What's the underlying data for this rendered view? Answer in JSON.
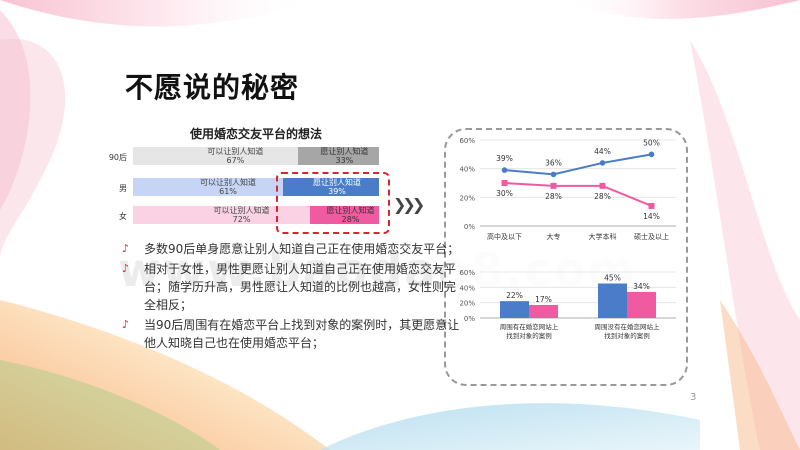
{
  "slide": {
    "title": "不愿说的秘密",
    "page_number": "3",
    "watermark": "www.baodao8.com"
  },
  "colors": {
    "blue": "#4a7cc9",
    "pink": "#f05aa0",
    "gray_light": "#e6e6e6",
    "gray_dark": "#a6a6a6",
    "blue_light": "#c6d4f5",
    "pink_light": "#fad2e3",
    "red_highlight": "#d9252e"
  },
  "left_chart": {
    "title": "使用婚恋交友平台的想法",
    "rows": [
      {
        "label": "90后",
        "left_text": "可以让别人知道",
        "left_value": "67%",
        "right_text": "愿让别人知道",
        "right_value": "33%"
      },
      {
        "label": "男",
        "left_text": "可以让别人知道",
        "left_value": "61%",
        "right_text": "愿让别人知道",
        "right_value": "39%"
      },
      {
        "label": "女",
        "left_text": "可以让别人知道",
        "left_value": "72%",
        "right_text": "愿让别人知道",
        "right_value": "28%"
      }
    ]
  },
  "chart_data": [
    {
      "type": "bar",
      "title": "使用婚恋交友平台的想法",
      "categories": [
        "90后",
        "男",
        "女"
      ],
      "series": [
        {
          "name": "可以让别人知道",
          "values": [
            67,
            61,
            72
          ]
        },
        {
          "name": "愿让别人知道",
          "values": [
            33,
            39,
            28
          ]
        }
      ]
    },
    {
      "type": "line",
      "categories": [
        "高中及以下",
        "大专",
        "大学本科",
        "硕士及以上"
      ],
      "series": [
        {
          "values": [
            39,
            36,
            44,
            50
          ],
          "color": "#4a7cc9"
        },
        {
          "values": [
            30,
            28,
            28,
            14
          ],
          "color": "#f05aa0"
        }
      ],
      "yticks": [
        "0%",
        "20%",
        "40%",
        "60%"
      ],
      "ylim": [
        0,
        60
      ]
    },
    {
      "type": "bar",
      "categories": [
        "周围有在婚恋网站上找到对象的案例",
        "周围没有在婚恋网站上找到对象的案例"
      ],
      "series": [
        {
          "values": [
            22,
            45
          ],
          "color": "#4a7cc9"
        },
        {
          "values": [
            17,
            34
          ],
          "color": "#f05aa0"
        }
      ],
      "yticks": [
        "0%",
        "20%",
        "40%",
        "60%"
      ],
      "ylim": [
        0,
        60
      ]
    }
  ],
  "line_labels": {
    "blue": [
      "39%",
      "36%",
      "44%",
      "50%"
    ],
    "pink": [
      "30%",
      "28%",
      "28%",
      "14%"
    ],
    "x": [
      "高中及以下",
      "大专",
      "大学本科",
      "硕士及以上"
    ]
  },
  "bar_labels": {
    "blue": [
      "22%",
      "45%"
    ],
    "pink": [
      "17%",
      "34%"
    ],
    "x1": [
      "周围有在婚恋网站上",
      "找到对象的案例"
    ],
    "x2": [
      "周围没有在婚恋网站上",
      "找到对象的案例"
    ]
  },
  "bullets": [
    {
      "text": "多数90后单身愿意让别人知道自己正在使用婚恋交友平台；"
    },
    {
      "text": "相对于女性，男性更愿让别人知道自己正在使用婚恋交友平台；随学历升高，男性愿让人知道的比例也越高，女性则完全相反；"
    },
    {
      "text": "当90后周围有在婚恋平台上找到对象的案例时，其更愿意让他人知晓自己也在使用婚恋平台；"
    }
  ]
}
